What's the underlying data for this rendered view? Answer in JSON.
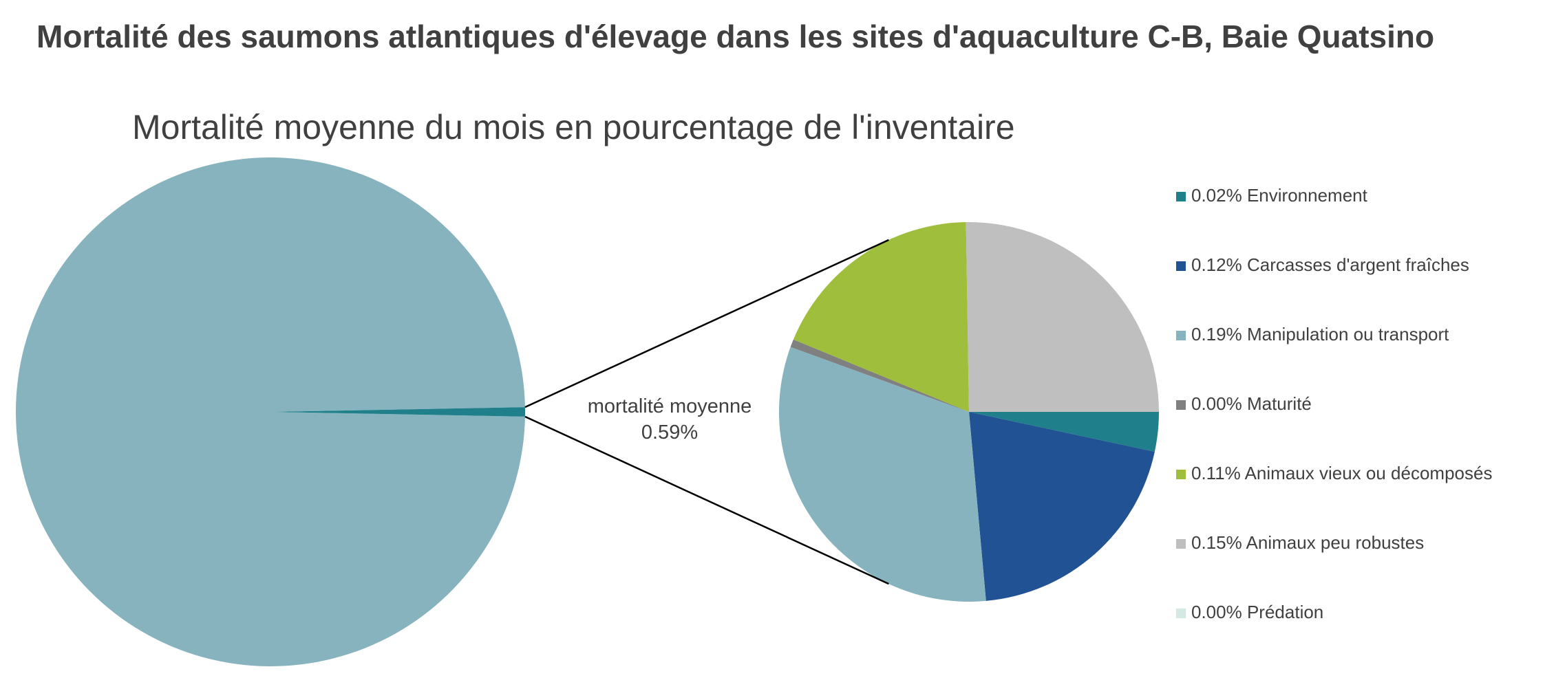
{
  "chart_data": [
    {
      "type": "pie",
      "title": "Mortalité des saumons atlantiques d'élevage dans les sites d'aquaculture C-B, Baie Quatsino",
      "subtitle": "Mortalité moyenne du mois en pourcentage de l'inventaire",
      "categories": [
        null,
        "mortalité moyenne"
      ],
      "values": [
        99.41,
        0.59
      ],
      "value_labels": [
        null,
        "0.59%"
      ],
      "colors": [
        "#86b3bd",
        "#1f7f8a"
      ]
    },
    {
      "type": "pie",
      "categories": [
        "Environnement",
        "Carcasses d'argent fraîches",
        "Manipulation ou transport",
        "Maturité",
        "Animaux vieux ou décomposés",
        "Animaux peu robustes",
        "Prédation"
      ],
      "values": [
        0.02,
        0.12,
        0.19,
        0.004,
        0.11,
        0.15,
        0
      ],
      "value_labels": [
        "0.02%",
        "0.12%",
        "0.19%",
        "0.00%",
        "0.11%",
        "0.15%",
        "0.00%"
      ],
      "colors": [
        "#1f7f8a",
        "#215294",
        "#86b3bd",
        "#808080",
        "#9ebe3c",
        "#bfbfbf",
        "#d5e8e4"
      ],
      "legend": "right"
    }
  ]
}
